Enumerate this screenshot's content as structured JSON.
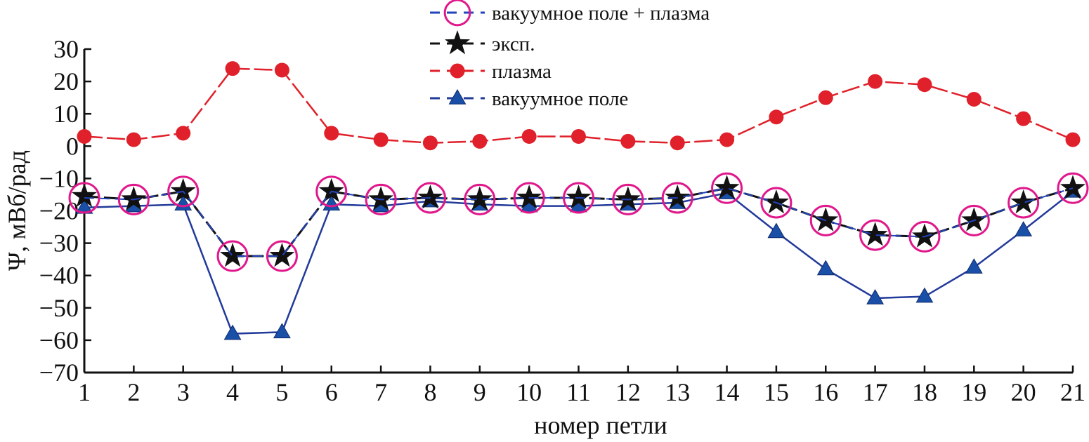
{
  "chart_data": {
    "type": "line",
    "xlabel": "номер петли",
    "ylabel": "Ψ, мВб/рад",
    "xlim": [
      1,
      21
    ],
    "ylim": [
      -70,
      30
    ],
    "x": [
      1,
      2,
      3,
      4,
      5,
      6,
      7,
      8,
      9,
      10,
      11,
      12,
      13,
      14,
      15,
      16,
      17,
      18,
      19,
      20,
      21
    ],
    "x_ticks": [
      "1",
      "2",
      "3",
      "4",
      "5",
      "6",
      "7",
      "8",
      "9",
      "10",
      "11",
      "12",
      "13",
      "14",
      "15",
      "16",
      "17",
      "18",
      "19",
      "20",
      "21"
    ],
    "y_ticks": [
      30,
      20,
      10,
      0,
      -10,
      -20,
      -30,
      -40,
      -50,
      -60,
      -70
    ],
    "y_tick_labels": [
      "30",
      "20",
      "10",
      "0",
      "−10",
      "−20",
      "−30",
      "−40",
      "−50",
      "−60",
      "−70"
    ],
    "grid": false,
    "legend_position": "top-center",
    "series": [
      {
        "name": "вакуумное поле + плазма",
        "color": "#e0188c",
        "line_color": "#2244bb",
        "marker": "open-circle",
        "values": [
          -16,
          -16.5,
          -14,
          -34,
          -34,
          -14,
          -16.5,
          -16,
          -16.5,
          -16,
          -16,
          -16.5,
          -16,
          -13,
          -17.5,
          -23,
          -27.5,
          -28,
          -23,
          -17.5,
          -13
        ]
      },
      {
        "name": "эксп.",
        "color": "#111111",
        "line_color": "#111111",
        "marker": "star",
        "values": [
          -15.5,
          -16.5,
          -14,
          -34,
          -34,
          -14,
          -16.5,
          -16,
          -16.5,
          -16,
          -16,
          -16.5,
          -16,
          -13,
          -17.5,
          -23,
          -27.5,
          -28,
          -23,
          -17.5,
          -13
        ]
      },
      {
        "name": "плазма",
        "color": "#e0202a",
        "line_color": "#e0202a",
        "marker": "filled-circle",
        "values": [
          3,
          2,
          4,
          24,
          23.5,
          4,
          2,
          1,
          1.5,
          3,
          3,
          1.5,
          1,
          2,
          9,
          15,
          20,
          19,
          14.5,
          8.5,
          2
        ]
      },
      {
        "name": "вакуумное поле",
        "color": "#1a4fa8",
        "line_color": "#223a9a",
        "marker": "filled-triangle",
        "values": [
          -19,
          -18.5,
          -18,
          -58,
          -57.5,
          -18,
          -18.5,
          -17,
          -18,
          -18.5,
          -18.5,
          -18,
          -17.5,
          -14.5,
          -26.5,
          -38,
          -47,
          -46.5,
          -37.5,
          -26,
          -14
        ]
      }
    ]
  }
}
